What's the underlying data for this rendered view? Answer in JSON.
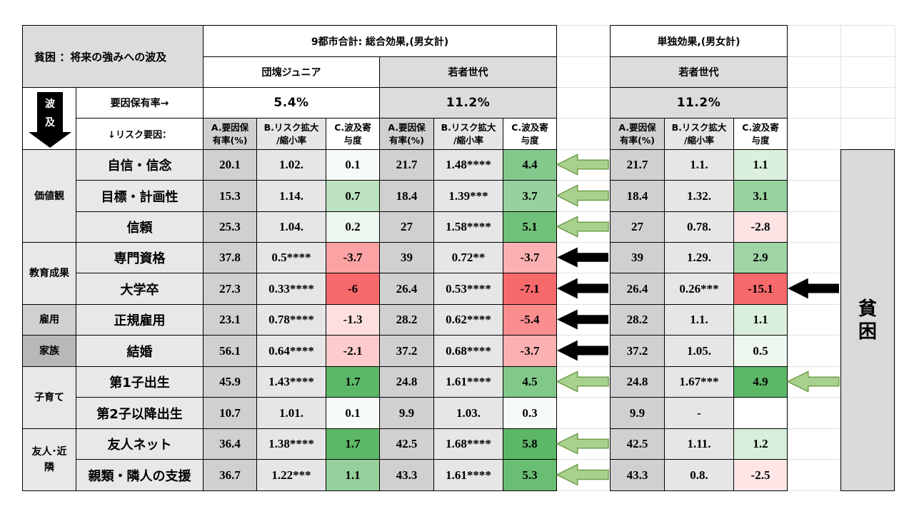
{
  "header": {
    "title": "貧困 ：将来の強みへの波及",
    "total_effect": "9都市合計: 総合効果,(男女計)",
    "single_effect": "単独効果,(男女計)",
    "group1": "団塊ジュニア",
    "group2": "若者世代",
    "group3": "若者世代",
    "ripple_label": "波及",
    "prevalence_label": "要因保有率→",
    "risk_label": "↓リスク要因：",
    "prevalence": [
      "5.4%",
      "11.2%",
      "11.2%"
    ],
    "subheaders": [
      "A.要因保\n有率(%)",
      "B.リスク拡大\n/縮小率",
      "C.波及寄\n与度"
    ]
  },
  "categories": [
    {
      "label": "価値観"
    },
    {
      "label": "教育成果"
    },
    {
      "label": "雇用"
    },
    {
      "label": "家族"
    },
    {
      "label": "子育て"
    },
    {
      "label": "友人･近\n隣"
    }
  ],
  "rows": [
    {
      "factor": "自信・信念",
      "g1": [
        "20.1",
        "1.02.",
        "0.1"
      ],
      "g2": [
        "21.7",
        "1.48****",
        "4.4"
      ],
      "g3": [
        "21.7",
        "1.1.",
        "1.1"
      ],
      "arrow_mid": "hollow-left",
      "arrow_right": ""
    },
    {
      "factor": "目標・計画性",
      "g1": [
        "15.3",
        "1.14.",
        "0.7"
      ],
      "g2": [
        "18.4",
        "1.39***",
        "3.7"
      ],
      "g3": [
        "18.4",
        "1.32.",
        "3.1"
      ],
      "arrow_mid": "hollow-left",
      "arrow_right": ""
    },
    {
      "factor": "信頼",
      "g1": [
        "25.3",
        "1.04.",
        "0.2"
      ],
      "g2": [
        "27",
        "1.58****",
        "5.1"
      ],
      "g3": [
        "27",
        "0.78.",
        "-2.8"
      ],
      "arrow_mid": "hollow-left",
      "arrow_right": ""
    },
    {
      "factor": "専門資格",
      "g1": [
        "37.8",
        "0.5****",
        "-3.7"
      ],
      "g2": [
        "39",
        "0.72**",
        "-3.7"
      ],
      "g3": [
        "39",
        "1.29.",
        "2.9"
      ],
      "arrow_mid": "solid-left",
      "arrow_right": ""
    },
    {
      "factor": "大学卒",
      "g1": [
        "27.3",
        "0.33****",
        "-6"
      ],
      "g2": [
        "26.4",
        "0.53****",
        "-7.1"
      ],
      "g3": [
        "26.4",
        "0.26***",
        "-15.1"
      ],
      "arrow_mid": "solid-left",
      "arrow_right": "solid-left"
    },
    {
      "factor": "正規雇用",
      "g1": [
        "23.1",
        "0.78****",
        "-1.3"
      ],
      "g2": [
        "28.2",
        "0.62****",
        "-5.4"
      ],
      "g3": [
        "28.2",
        "1.1.",
        "1.1"
      ],
      "arrow_mid": "solid-left",
      "arrow_right": ""
    },
    {
      "factor": "結婚",
      "g1": [
        "56.1",
        "0.64****",
        "-2.1"
      ],
      "g2": [
        "37.2",
        "0.68****",
        "-3.7"
      ],
      "g3": [
        "37.2",
        "1.05.",
        "0.5"
      ],
      "arrow_mid": "solid-left",
      "arrow_right": ""
    },
    {
      "factor": "第1子出生",
      "g1": [
        "45.9",
        "1.43****",
        "1.7"
      ],
      "g2": [
        "24.8",
        "1.61****",
        "4.5"
      ],
      "g3": [
        "24.8",
        "1.67***",
        "4.9"
      ],
      "arrow_mid": "hollow-left",
      "arrow_right": "hollow-left"
    },
    {
      "factor": "第2子以降出生",
      "g1": [
        "10.7",
        "1.01.",
        "0.1"
      ],
      "g2": [
        "9.9",
        "1.03.",
        "0.3"
      ],
      "g3": [
        "9.9",
        "-",
        ""
      ],
      "arrow_mid": "",
      "arrow_right": ""
    },
    {
      "factor": "友人ネット",
      "g1": [
        "36.4",
        "1.38****",
        "1.7"
      ],
      "g2": [
        "42.5",
        "1.68****",
        "5.8"
      ],
      "g3": [
        "42.5",
        "1.11.",
        "1.2"
      ],
      "arrow_mid": "hollow-left",
      "arrow_right": ""
    },
    {
      "factor": "親類・隣人の支援",
      "g1": [
        "36.7",
        "1.22***",
        "1.1"
      ],
      "g2": [
        "43.3",
        "1.61****",
        "5.3"
      ],
      "g3": [
        "43.3",
        "0.8.",
        "-2.5"
      ],
      "arrow_mid": "hollow-left",
      "arrow_right": ""
    }
  ],
  "poverty_box": "貧\n困",
  "colors": {
    "positive_max": "#5cb867",
    "negative_max": "#f8696b",
    "neutral": "#ffffff",
    "hollow_arrow_fill": "#a9d18e",
    "hollow_arrow_stroke": "#6e9e4a",
    "solid_arrow": "#000000"
  }
}
